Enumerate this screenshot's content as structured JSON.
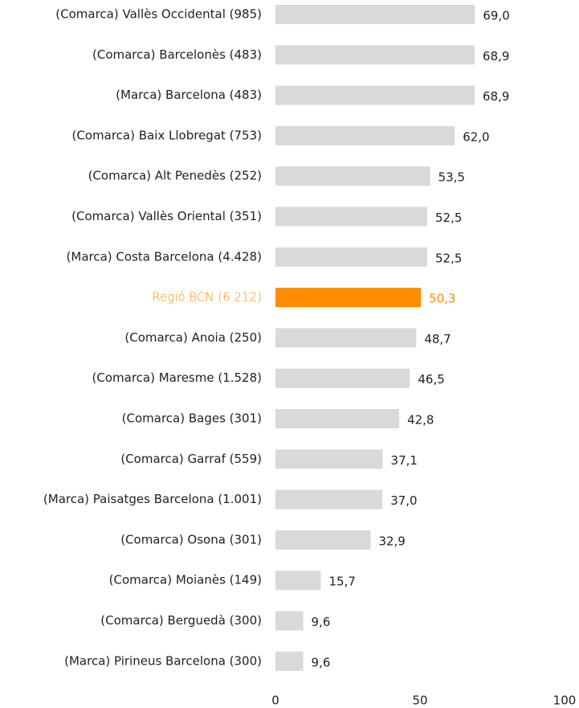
{
  "chart_data": {
    "type": "bar",
    "orientation": "horizontal",
    "categories": [
      "(Comarca) Vallès Occidental (985)",
      "(Comarca) Barcelonès (483)",
      "(Marca) Barcelona (483)",
      "(Comarca) Baix Llobregat (753)",
      "(Comarca) Alt Penedès (252)",
      "(Comarca) Vallès Oriental (351)",
      "(Marca) Costa Barcelona (4.428)",
      "Regió BCN (6.212)",
      "(Comarca) Anoia (250)",
      "(Comarca) Maresme (1.528)",
      "(Comarca) Bages (301)",
      "(Comarca) Garraf (559)",
      "(Marca) Paisatges Barcelona (1.001)",
      "(Comarca) Osona (301)",
      "(Comarca) Moianès (149)",
      "(Comarca) Berguedà (300)",
      "(Marca) Pirineus Barcelona (300)"
    ],
    "values": [
      69.0,
      68.9,
      68.9,
      62.0,
      53.5,
      52.5,
      52.5,
      50.3,
      48.7,
      46.5,
      42.8,
      37.1,
      37.0,
      32.9,
      15.7,
      9.6,
      9.6
    ],
    "value_labels": [
      "69,0",
      "68,9",
      "68,9",
      "62,0",
      "53,5",
      "52,5",
      "52,5",
      "50,3",
      "48,7",
      "46,5",
      "42,8",
      "37,1",
      "37,0",
      "32,9",
      "15,7",
      "9,6",
      "9,6"
    ],
    "color": "#d9d9d9",
    "colors": [
      "#d9d9d9",
      "#d9d9d9",
      "#d9d9d9",
      "#d9d9d9",
      "#d9d9d9",
      "#d9d9d9",
      "#d9d9d9",
      "#ff8c00",
      "#d9d9d9",
      "#d9d9d9",
      "#d9d9d9",
      "#d9d9d9",
      "#d9d9d9",
      "#d9d9d9",
      "#d9d9d9",
      "#d9d9d9",
      "#d9d9d9"
    ],
    "xlim": [
      0,
      100
    ],
    "xticks": [
      0,
      50,
      100
    ],
    "grid": false
  }
}
